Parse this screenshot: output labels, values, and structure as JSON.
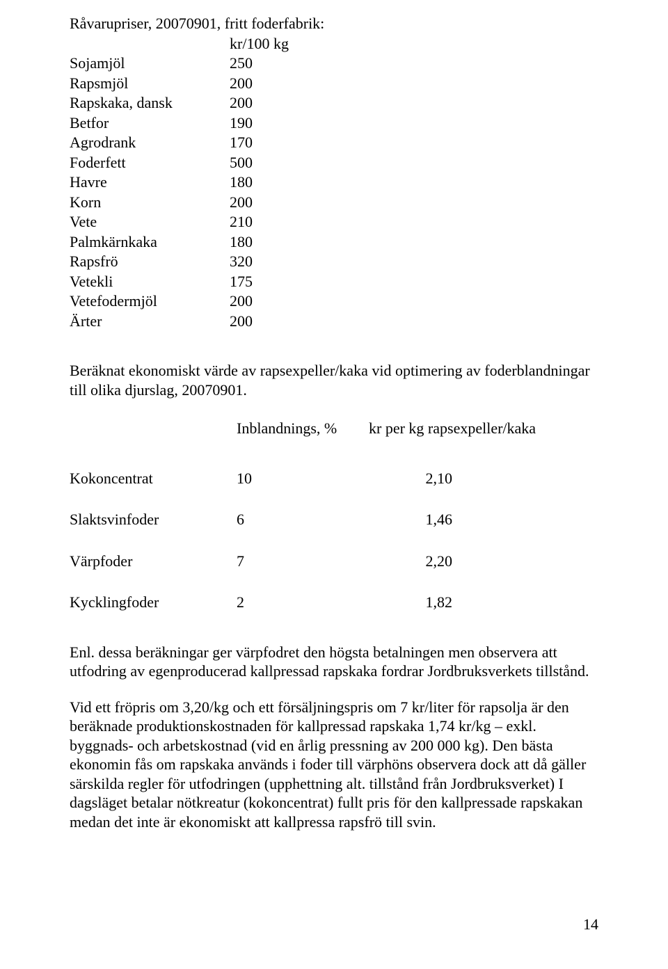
{
  "raw_prices": {
    "title": "Råvarupriser, 20070901, fritt foderfabrik:",
    "unit_header": "kr/100 kg",
    "rows": [
      {
        "name": "Sojamjöl",
        "value": "250"
      },
      {
        "name": "Rapsmjöl",
        "value": "200"
      },
      {
        "name": "Rapskaka, dansk",
        "value": "200"
      },
      {
        "name": "Betfor",
        "value": "190"
      },
      {
        "name": "Agrodrank",
        "value": "170"
      },
      {
        "name": "Foderfett",
        "value": "500"
      },
      {
        "name": "Havre",
        "value": "180"
      },
      {
        "name": "Korn",
        "value": "200"
      },
      {
        "name": "Vete",
        "value": "210"
      },
      {
        "name": "Palmkärnkaka",
        "value": "180"
      },
      {
        "name": "Rapsfrö",
        "value": "320"
      },
      {
        "name": "Vetekli",
        "value": "175"
      },
      {
        "name": "Vetefodermjöl",
        "value": "200"
      },
      {
        "name": "Ärter",
        "value": "200"
      }
    ]
  },
  "calc": {
    "intro": "Beräknat ekonomiskt värde av rapsexpeller/kaka vid optimering av foderblandningar till olika djurslag, 20070901.",
    "col_inbland": "Inblandnings, %",
    "col_krperkg": "kr per kg rapsexpeller/kaka",
    "rows": [
      {
        "name": "Kokoncentrat",
        "pct": "10",
        "kr": "2,10"
      },
      {
        "name": "Slaktsvinfoder",
        "pct": "6",
        "kr": "1,46"
      },
      {
        "name": "Värpfoder",
        "pct": "7",
        "kr": "2,20"
      },
      {
        "name": "Kycklingfoder",
        "pct": "2",
        "kr": "1,82"
      }
    ]
  },
  "paragraphs": {
    "p1": "Enl. dessa beräkningar ger värpfodret den högsta betalningen men observera att utfodring av egenproducerad kallpressad rapskaka fordrar Jordbruksverkets tillstånd.",
    "p2": "Vid ett fröpris om 3,20/kg och ett försäljningspris om 7 kr/liter för rapsolja är den beräknade produktionskostnaden för kallpressad rapskaka 1,74 kr/kg – exkl. byggnads- och arbetskostnad (vid en årlig pressning av 200 000 kg). Den bästa ekonomin fås om rapskaka används i foder till värphöns observera dock att då gäller särskilda regler för utfodringen (upphettning alt. tillstånd från Jordbruksverket) I dagsläget betalar nötkreatur (kokoncentrat) fullt pris för den kallpressade rapskakan medan det inte är ekonomiskt att kallpressa rapsfrö till svin."
  },
  "page_number": "14"
}
